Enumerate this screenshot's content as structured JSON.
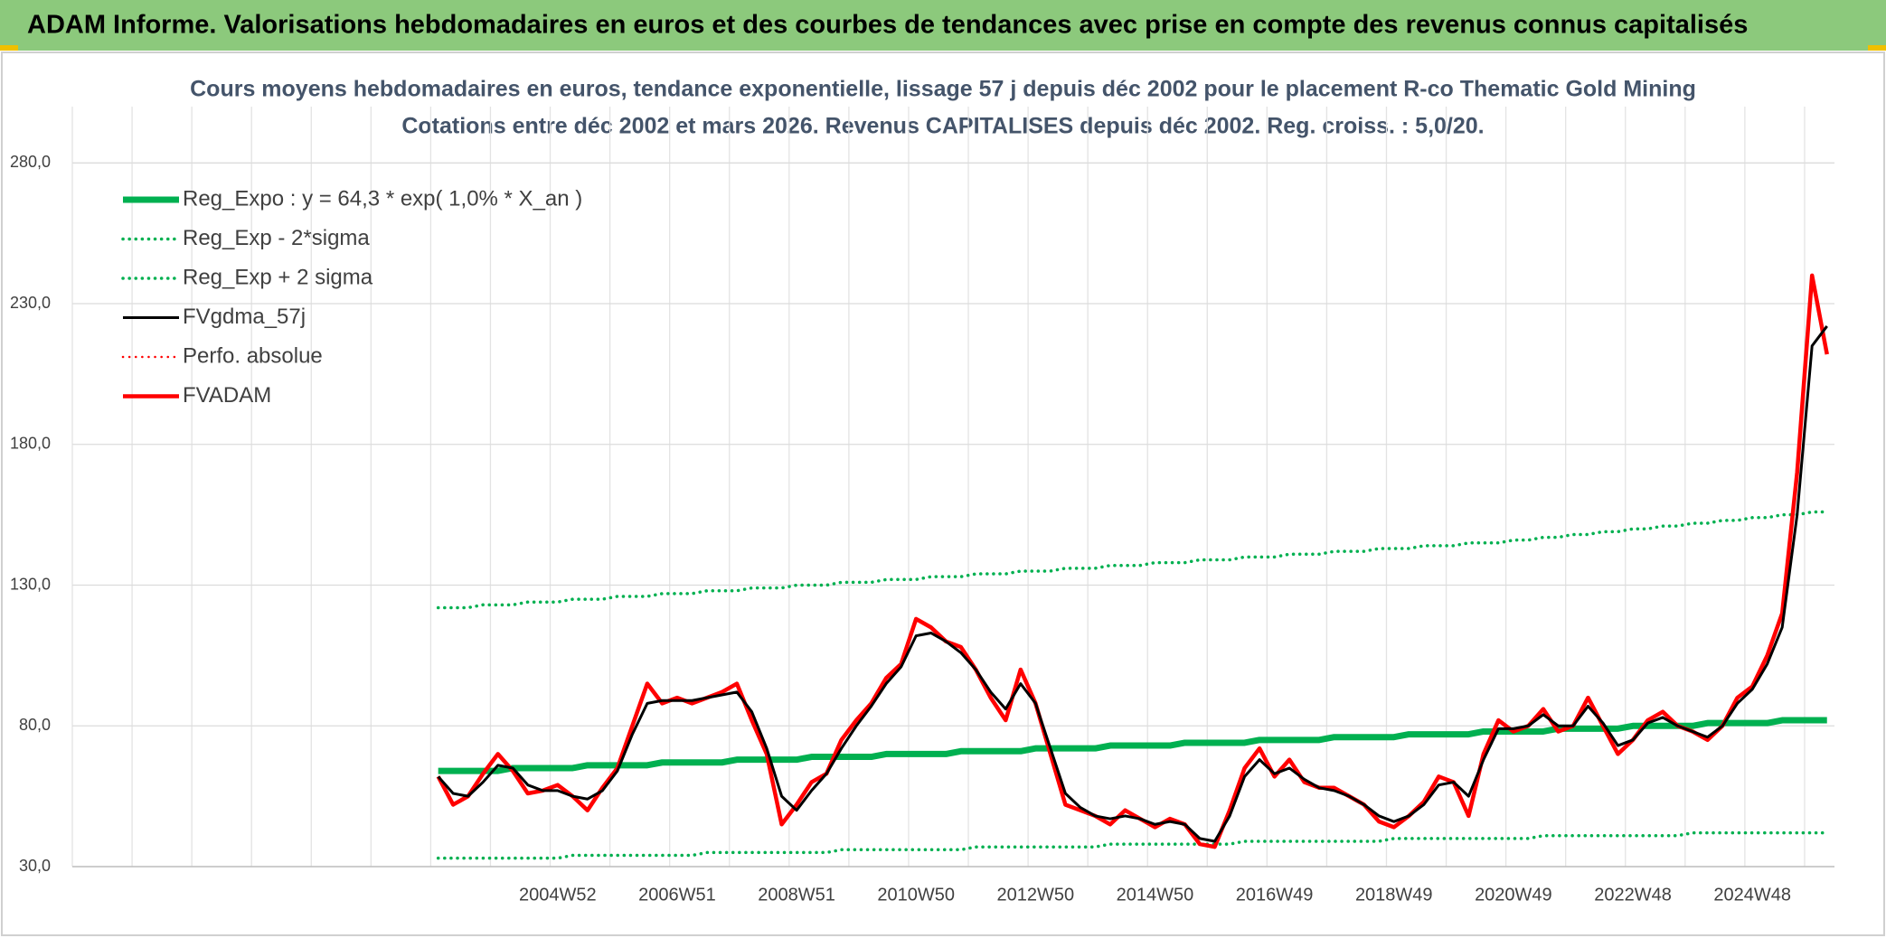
{
  "header": "ADAM Informe. Valorisations hebdomadaires en euros et des courbes de tendances avec prise en compte des revenus connus capitalisés",
  "chart_data": {
    "type": "line",
    "title": "Cours moyens hebdomadaires en euros, tendance exponentielle, lissage 57 j depuis déc 2002 pour le placement R-co Thematic Gold Mining",
    "subtitle": "Cotations entre déc 2002 et mars 2026. Revenus CAPITALISES depuis déc 2002. Reg. croiss. : 5,0/20.",
    "categories": [
      null,
      null,
      null,
      null,
      null,
      null,
      null,
      null,
      null,
      null,
      null,
      null,
      null,
      null,
      null,
      null,
      null,
      null,
      null,
      null,
      null,
      null,
      null,
      null,
      null,
      null,
      null,
      null,
      null,
      null,
      null,
      null,
      "2004W52",
      null,
      null,
      null,
      null,
      null,
      null,
      null,
      "2006W51",
      null,
      null,
      null,
      null,
      null,
      null,
      null,
      "2008W51",
      null,
      null,
      null,
      null,
      null,
      null,
      null,
      "2010W50",
      null,
      null,
      null,
      null,
      null,
      null,
      null,
      "2012W50",
      null,
      null,
      null,
      null,
      null,
      null,
      null,
      "2014W50",
      null,
      null,
      null,
      null,
      null,
      null,
      null,
      "2016W49",
      null,
      null,
      null,
      null,
      null,
      null,
      null,
      "2018W49",
      null,
      null,
      null,
      null,
      null,
      null,
      null,
      "2020W49",
      null,
      null,
      null,
      null,
      null,
      null,
      null,
      "2022W48",
      null,
      null,
      null,
      null,
      null,
      null,
      null,
      "2024W48",
      null,
      null,
      null,
      null,
      null
    ],
    "ylim": [
      30,
      300
    ],
    "yticks": [
      {
        "value": 30,
        "label": "30,0"
      },
      {
        "value": 80,
        "label": "80,0"
      },
      {
        "value": 130,
        "label": "130,0"
      },
      {
        "value": 180,
        "label": "180,0"
      },
      {
        "value": 230,
        "label": "230,0"
      },
      {
        "value": 280,
        "label": "280,0"
      }
    ],
    "grid": true,
    "legend": "upper left",
    "series": [
      {
        "name": "Reg_Expo : y = 64,3 * exp( 1,0% *  X_an )",
        "color": "#00b050",
        "line_style": "solid",
        "values": [
          null,
          null,
          null,
          null,
          null,
          null,
          null,
          null,
          null,
          null,
          null,
          null,
          null,
          null,
          null,
          null,
          null,
          null,
          null,
          null,
          null,
          null,
          null,
          null,
          64,
          64,
          64,
          64,
          64,
          65,
          65,
          65,
          65,
          65,
          66,
          66,
          66,
          66,
          66,
          67,
          67,
          67,
          67,
          67,
          68,
          68,
          68,
          68,
          68,
          69,
          69,
          69,
          69,
          69,
          70,
          70,
          70,
          70,
          70,
          71,
          71,
          71,
          71,
          71,
          72,
          72,
          72,
          72,
          72,
          73,
          73,
          73,
          73,
          73,
          74,
          74,
          74,
          74,
          74,
          75,
          75,
          75,
          75,
          75,
          76,
          76,
          76,
          76,
          76,
          77,
          77,
          77,
          77,
          77,
          78,
          78,
          78,
          78,
          78,
          79,
          79,
          79,
          79,
          79,
          80,
          80,
          80,
          80,
          80,
          81,
          81,
          81,
          81,
          81,
          82,
          82,
          82,
          82
        ]
      },
      {
        "name": "Reg_Exp - 2*sigma",
        "color": "#00b050",
        "line_style": "dotted",
        "values": [
          null,
          null,
          null,
          null,
          null,
          null,
          null,
          null,
          null,
          null,
          null,
          null,
          null,
          null,
          null,
          null,
          null,
          null,
          null,
          null,
          null,
          null,
          null,
          null,
          33,
          33,
          33,
          33,
          33,
          33,
          33,
          33,
          33,
          34,
          34,
          34,
          34,
          34,
          34,
          34,
          34,
          34,
          35,
          35,
          35,
          35,
          35,
          35,
          35,
          35,
          35,
          36,
          36,
          36,
          36,
          36,
          36,
          36,
          36,
          36,
          37,
          37,
          37,
          37,
          37,
          37,
          37,
          37,
          37,
          38,
          38,
          38,
          38,
          38,
          38,
          38,
          38,
          38,
          39,
          39,
          39,
          39,
          39,
          39,
          39,
          39,
          39,
          39,
          40,
          40,
          40,
          40,
          40,
          40,
          40,
          40,
          40,
          40,
          41,
          41,
          41,
          41,
          41,
          41,
          41,
          41,
          41,
          41,
          42,
          42,
          42,
          42,
          42,
          42,
          42,
          42,
          42,
          42
        ]
      },
      {
        "name": "Reg_Exp + 2 sigma",
        "color": "#00b050",
        "line_style": "dotted",
        "values": [
          null,
          null,
          null,
          null,
          null,
          null,
          null,
          null,
          null,
          null,
          null,
          null,
          null,
          null,
          null,
          null,
          null,
          null,
          null,
          null,
          null,
          null,
          null,
          null,
          122,
          122,
          122,
          123,
          123,
          123,
          124,
          124,
          124,
          125,
          125,
          125,
          126,
          126,
          126,
          127,
          127,
          127,
          128,
          128,
          128,
          129,
          129,
          129,
          130,
          130,
          130,
          131,
          131,
          131,
          132,
          132,
          132,
          133,
          133,
          133,
          134,
          134,
          134,
          135,
          135,
          135,
          136,
          136,
          136,
          137,
          137,
          137,
          138,
          138,
          138,
          139,
          139,
          139,
          140,
          140,
          140,
          141,
          141,
          141,
          142,
          142,
          142,
          143,
          143,
          143,
          144,
          144,
          144,
          145,
          145,
          145,
          146,
          146,
          147,
          147,
          148,
          148,
          149,
          149,
          150,
          150,
          151,
          151,
          152,
          152,
          153,
          153,
          154,
          154,
          155,
          155,
          156,
          156
        ]
      },
      {
        "name": "FVgdma_57j",
        "color": "#000000",
        "line_style": "solid",
        "values": [
          null,
          null,
          null,
          null,
          null,
          null,
          null,
          null,
          null,
          null,
          null,
          null,
          null,
          null,
          null,
          null,
          null,
          null,
          null,
          null,
          null,
          null,
          null,
          null,
          62,
          56,
          55,
          60,
          66,
          65,
          59,
          57,
          57,
          55,
          54,
          57,
          64,
          77,
          88,
          89,
          89,
          89,
          90,
          91,
          92,
          85,
          72,
          55,
          50,
          57,
          63,
          72,
          80,
          87,
          95,
          101,
          112,
          113,
          110,
          106,
          100,
          92,
          86,
          95,
          88,
          72,
          56,
          51,
          48,
          47,
          48,
          47,
          45,
          46,
          45,
          40,
          39,
          48,
          62,
          68,
          63,
          65,
          61,
          58,
          57,
          55,
          52,
          48,
          46,
          48,
          52,
          59,
          60,
          55,
          68,
          79,
          79,
          80,
          84,
          80,
          80,
          87,
          81,
          73,
          75,
          81,
          83,
          80,
          78,
          76,
          80,
          88,
          93,
          102,
          115,
          155,
          215,
          222
        ]
      },
      {
        "name": "Perfo. absolue",
        "color": "#ff0000",
        "line_style": "dotted",
        "values": [
          null,
          null,
          null,
          null,
          null,
          null,
          null,
          null,
          null,
          null,
          null,
          null,
          null,
          null,
          null,
          null,
          null,
          null,
          null,
          null,
          null,
          null,
          null,
          null,
          null,
          null,
          null,
          null,
          null,
          null,
          null,
          null,
          null,
          null,
          null,
          null,
          null,
          null,
          null,
          null,
          null,
          null,
          null,
          null,
          null,
          null,
          null,
          null,
          null,
          null,
          null,
          null,
          null,
          null,
          null,
          null,
          null,
          null,
          null,
          null,
          null,
          null,
          null,
          null,
          null,
          null,
          null,
          null,
          null,
          null,
          null,
          null,
          null,
          null,
          null,
          null,
          null,
          null,
          null,
          null,
          null,
          null,
          null,
          null,
          null,
          null,
          null,
          null,
          null,
          null,
          null,
          null,
          null,
          null,
          null,
          null,
          null,
          null,
          null,
          null,
          null,
          null,
          null,
          null,
          null,
          null,
          null,
          null,
          null,
          null,
          null,
          null,
          null,
          null,
          null,
          null,
          null,
          null
        ]
      },
      {
        "name": "FVADAM",
        "color": "#ff0000",
        "line_style": "solid",
        "values": [
          null,
          null,
          null,
          null,
          null,
          null,
          null,
          null,
          null,
          null,
          null,
          null,
          null,
          null,
          null,
          null,
          null,
          null,
          null,
          null,
          null,
          null,
          null,
          null,
          62,
          52,
          55,
          63,
          70,
          64,
          56,
          57,
          59,
          55,
          50,
          58,
          65,
          80,
          95,
          88,
          90,
          88,
          90,
          92,
          95,
          82,
          70,
          45,
          52,
          60,
          63,
          75,
          82,
          88,
          97,
          102,
          118,
          115,
          110,
          108,
          100,
          90,
          82,
          100,
          88,
          70,
          52,
          50,
          48,
          45,
          50,
          47,
          44,
          47,
          45,
          38,
          37,
          50,
          65,
          72,
          62,
          68,
          60,
          58,
          58,
          55,
          52,
          46,
          44,
          48,
          53,
          62,
          60,
          48,
          70,
          82,
          78,
          80,
          86,
          78,
          80,
          90,
          80,
          70,
          75,
          82,
          85,
          80,
          78,
          75,
          80,
          90,
          94,
          105,
          120,
          170,
          240,
          212
        ]
      }
    ]
  }
}
